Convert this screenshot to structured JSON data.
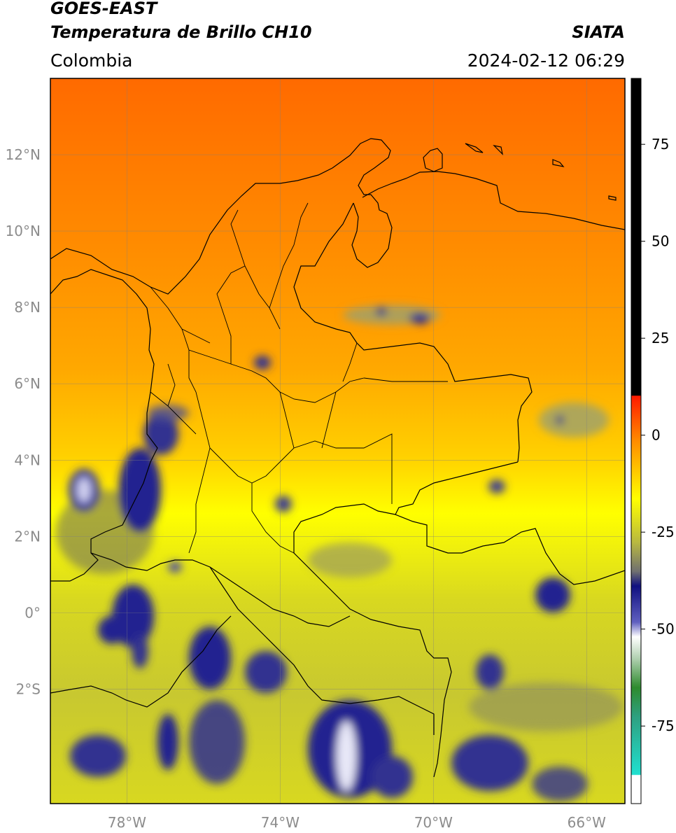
{
  "header": {
    "satellite": "GOES-EAST",
    "product": "Temperatura de Brillo CH10",
    "region": "Colombia",
    "organization": "SIATA",
    "datetime": "2024-02-12 06:29"
  },
  "map": {
    "extent": {
      "lon_min": -80,
      "lon_max": -65,
      "lat_min": -5,
      "lat_max": 14
    },
    "gridlines": true,
    "lat_ticks": [
      {
        "value": 12,
        "label": "12°N"
      },
      {
        "value": 10,
        "label": "10°N"
      },
      {
        "value": 8,
        "label": "8°N"
      },
      {
        "value": 6,
        "label": "6°N"
      },
      {
        "value": 4,
        "label": "4°N"
      },
      {
        "value": 2,
        "label": "2°N"
      },
      {
        "value": 0,
        "label": "0°"
      },
      {
        "value": -2,
        "label": "2°S"
      }
    ],
    "lon_ticks": [
      {
        "value": -78,
        "label": "78°W"
      },
      {
        "value": -74,
        "label": "74°W"
      },
      {
        "value": -70,
        "label": "70°W"
      },
      {
        "value": -66,
        "label": "66°W"
      }
    ]
  },
  "colorbar": {
    "range": [
      -95,
      92
    ],
    "ticks": [
      {
        "value": 75,
        "label": "75"
      },
      {
        "value": 50,
        "label": "50"
      },
      {
        "value": 25,
        "label": "25"
      },
      {
        "value": 0,
        "label": "0"
      },
      {
        "value": -25,
        "label": "-25"
      },
      {
        "value": -50,
        "label": "-50"
      },
      {
        "value": -75,
        "label": "-75"
      }
    ],
    "colors": {
      "black": "#000000",
      "red": "#ff1a00",
      "orange": "#ff8c00",
      "yellow": "#ffff00",
      "olive": "#b8b840",
      "gray": "#7a7a7a",
      "navy": "#101080",
      "white": "#ffffff",
      "green": "#2e8b2e",
      "cyan": "#20e0d0"
    }
  }
}
